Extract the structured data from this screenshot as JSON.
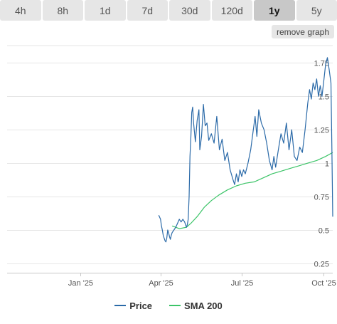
{
  "range_tabs": [
    {
      "label": "4h",
      "active": false
    },
    {
      "label": "8h",
      "active": false
    },
    {
      "label": "1d",
      "active": false
    },
    {
      "label": "7d",
      "active": false
    },
    {
      "label": "30d",
      "active": false
    },
    {
      "label": "120d",
      "active": false
    },
    {
      "label": "1y",
      "active": true
    },
    {
      "label": "5y",
      "active": false
    }
  ],
  "remove_graph_label": "remove graph",
  "colors": {
    "price": "#2b6aa8",
    "sma": "#3cc468",
    "grid": "#e6e6e6",
    "axis_text": "#555555"
  },
  "chart_data": {
    "type": "line",
    "xlabel": "",
    "ylabel": "",
    "x_ticks": [
      "Jan '25",
      "Apr '25",
      "Jul '25",
      "Oct '25"
    ],
    "y_ticks": [
      0.25,
      0.5,
      0.75,
      1,
      1.25,
      1.5,
      1.75
    ],
    "y_tick_labels": [
      "0.25",
      "0.5",
      "0.75",
      "1",
      "1.25",
      "1.5",
      "1.75"
    ],
    "ylim": [
      0.18,
      1.88
    ],
    "xlim": [
      "2024-10-11",
      "2025-10-11"
    ],
    "grid": true,
    "legend_position": "bottom",
    "series": [
      {
        "name": "Price",
        "color": "#2b6aa8",
        "points": [
          [
            "2025-03-30",
            0.61
          ],
          [
            "2025-04-01",
            0.58
          ],
          [
            "2025-04-02",
            0.53
          ],
          [
            "2025-04-03",
            0.5
          ],
          [
            "2025-04-04",
            0.46
          ],
          [
            "2025-04-05",
            0.44
          ],
          [
            "2025-04-06",
            0.42
          ],
          [
            "2025-04-07",
            0.41
          ],
          [
            "2025-04-08",
            0.44
          ],
          [
            "2025-04-09",
            0.5
          ],
          [
            "2025-04-10",
            0.48
          ],
          [
            "2025-04-11",
            0.45
          ],
          [
            "2025-04-12",
            0.43
          ],
          [
            "2025-04-13",
            0.46
          ],
          [
            "2025-04-14",
            0.48
          ],
          [
            "2025-04-16",
            0.5
          ],
          [
            "2025-04-18",
            0.52
          ],
          [
            "2025-04-20",
            0.55
          ],
          [
            "2025-04-22",
            0.58
          ],
          [
            "2025-04-24",
            0.56
          ],
          [
            "2025-04-26",
            0.58
          ],
          [
            "2025-04-28",
            0.56
          ],
          [
            "2025-04-30",
            0.52
          ],
          [
            "2025-05-01",
            0.54
          ],
          [
            "2025-05-02",
            0.58
          ],
          [
            "2025-05-03",
            0.75
          ],
          [
            "2025-05-04",
            1.05
          ],
          [
            "2025-05-05",
            1.2
          ],
          [
            "2025-05-06",
            1.38
          ],
          [
            "2025-05-07",
            1.42
          ],
          [
            "2025-05-08",
            1.3
          ],
          [
            "2025-05-10",
            1.16
          ],
          [
            "2025-05-12",
            1.32
          ],
          [
            "2025-05-14",
            1.4
          ],
          [
            "2025-05-15",
            1.1
          ],
          [
            "2025-05-17",
            1.2
          ],
          [
            "2025-05-19",
            1.44
          ],
          [
            "2025-05-21",
            1.28
          ],
          [
            "2025-05-23",
            1.3
          ],
          [
            "2025-05-25",
            1.17
          ],
          [
            "2025-05-28",
            1.22
          ],
          [
            "2025-05-31",
            1.15
          ],
          [
            "2025-06-03",
            1.35
          ],
          [
            "2025-06-06",
            1.1
          ],
          [
            "2025-06-09",
            1.18
          ],
          [
            "2025-06-12",
            1.02
          ],
          [
            "2025-06-15",
            1.08
          ],
          [
            "2025-06-18",
            0.95
          ],
          [
            "2025-06-21",
            0.88
          ],
          [
            "2025-06-23",
            0.84
          ],
          [
            "2025-06-25",
            0.92
          ],
          [
            "2025-06-27",
            0.86
          ],
          [
            "2025-06-29",
            0.95
          ],
          [
            "2025-07-01",
            0.9
          ],
          [
            "2025-07-03",
            0.95
          ],
          [
            "2025-07-05",
            0.92
          ],
          [
            "2025-07-08",
            1.0
          ],
          [
            "2025-07-11",
            1.1
          ],
          [
            "2025-07-14",
            1.25
          ],
          [
            "2025-07-16",
            1.35
          ],
          [
            "2025-07-18",
            1.2
          ],
          [
            "2025-07-20",
            1.4
          ],
          [
            "2025-07-23",
            1.3
          ],
          [
            "2025-07-26",
            1.25
          ],
          [
            "2025-07-29",
            1.15
          ],
          [
            "2025-08-01",
            1.02
          ],
          [
            "2025-08-04",
            0.95
          ],
          [
            "2025-08-06",
            1.05
          ],
          [
            "2025-08-08",
            0.97
          ],
          [
            "2025-08-11",
            1.1
          ],
          [
            "2025-08-14",
            1.22
          ],
          [
            "2025-08-17",
            1.15
          ],
          [
            "2025-08-20",
            1.3
          ],
          [
            "2025-08-23",
            1.1
          ],
          [
            "2025-08-26",
            1.25
          ],
          [
            "2025-08-29",
            1.05
          ],
          [
            "2025-09-01",
            1.02
          ],
          [
            "2025-09-04",
            1.12
          ],
          [
            "2025-09-07",
            1.08
          ],
          [
            "2025-09-10",
            1.25
          ],
          [
            "2025-09-13",
            1.45
          ],
          [
            "2025-09-15",
            1.55
          ],
          [
            "2025-09-17",
            1.48
          ],
          [
            "2025-09-19",
            1.6
          ],
          [
            "2025-09-21",
            1.55
          ],
          [
            "2025-09-23",
            1.63
          ],
          [
            "2025-09-25",
            1.5
          ],
          [
            "2025-09-27",
            1.58
          ],
          [
            "2025-09-29",
            1.5
          ],
          [
            "2025-10-01",
            1.62
          ],
          [
            "2025-10-03",
            1.74
          ],
          [
            "2025-10-05",
            1.79
          ],
          [
            "2025-10-07",
            1.7
          ],
          [
            "2025-10-09",
            1.6
          ],
          [
            "2025-10-10",
            1.15
          ],
          [
            "2025-10-11",
            0.6
          ]
        ]
      },
      {
        "name": "SMA 200",
        "color": "#3cc468",
        "points": [
          [
            "2025-04-14",
            0.53
          ],
          [
            "2025-04-22",
            0.51
          ],
          [
            "2025-04-30",
            0.52
          ],
          [
            "2025-05-05",
            0.55
          ],
          [
            "2025-05-12",
            0.6
          ],
          [
            "2025-05-20",
            0.67
          ],
          [
            "2025-05-28",
            0.72
          ],
          [
            "2025-06-05",
            0.76
          ],
          [
            "2025-06-15",
            0.8
          ],
          [
            "2025-06-25",
            0.83
          ],
          [
            "2025-07-05",
            0.85
          ],
          [
            "2025-07-15",
            0.86
          ],
          [
            "2025-07-25",
            0.89
          ],
          [
            "2025-08-04",
            0.92
          ],
          [
            "2025-08-14",
            0.94
          ],
          [
            "2025-08-24",
            0.96
          ],
          [
            "2025-09-03",
            0.98
          ],
          [
            "2025-09-13",
            1.0
          ],
          [
            "2025-09-23",
            1.02
          ],
          [
            "2025-10-03",
            1.05
          ],
          [
            "2025-10-11",
            1.08
          ]
        ]
      }
    ]
  }
}
